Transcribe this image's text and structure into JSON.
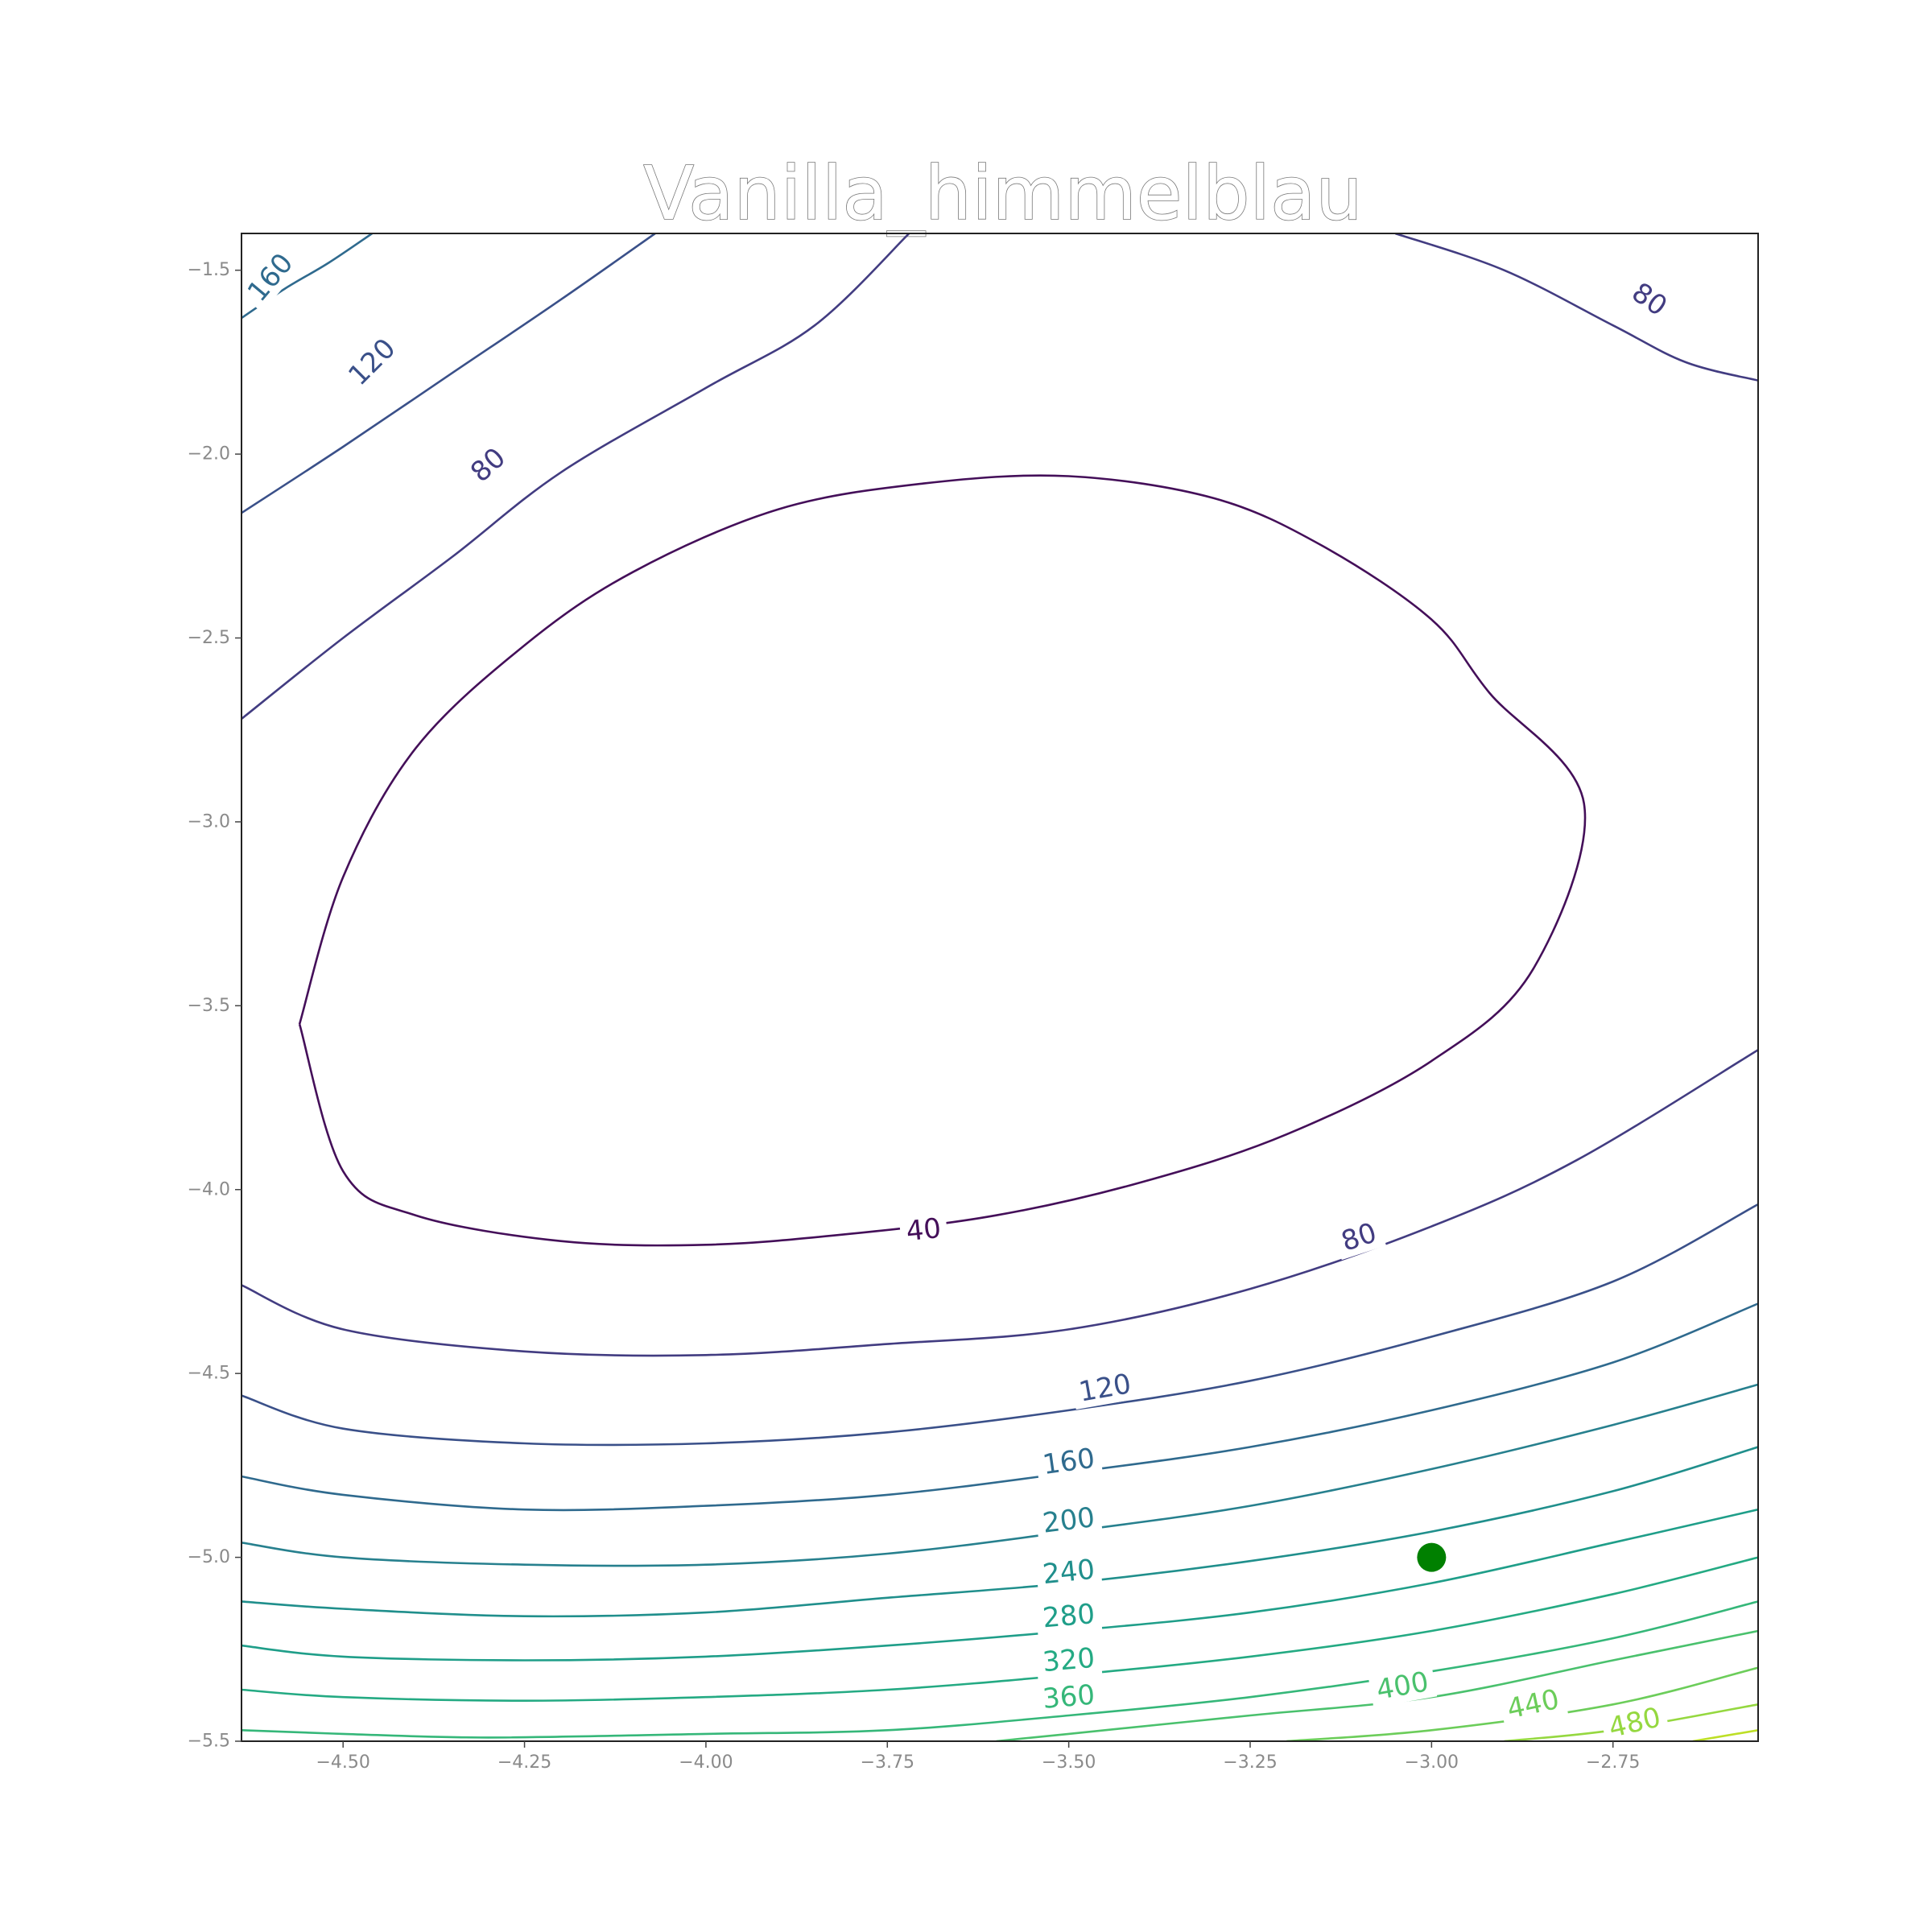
{
  "chart_data": {
    "type": "contour",
    "title": "Vanilla_himmelblau",
    "xlabel": "",
    "ylabel": "",
    "xlim": [
      -4.64,
      -2.55
    ],
    "ylim": [
      -5.5,
      -1.4
    ],
    "x_ticks": [
      -4.5,
      -4.25,
      -4.0,
      -3.75,
      -3.5,
      -3.25,
      -3.0,
      -2.75
    ],
    "x_tick_labels": [
      "−4.50",
      "−4.25",
      "−4.00",
      "−3.75",
      "−3.50",
      "−3.25",
      "−3.00",
      "−2.75"
    ],
    "y_ticks": [
      -1.5,
      -2.0,
      -2.5,
      -3.0,
      -3.5,
      -4.0,
      -4.5,
      -5.0,
      -5.5
    ],
    "y_tick_labels": [
      "−1.5",
      "−2.0",
      "−2.5",
      "−3.0",
      "−3.5",
      "−4.0",
      "−4.5",
      "−5.0",
      "−5.5"
    ],
    "grid": false,
    "colormap": "viridis",
    "contour_levels": [
      {
        "level": 40,
        "color": "#440f59",
        "labels": [
          "40"
        ],
        "paths": [
          [
            [
              -4.56,
              -3.55
            ],
            [
              -4.5,
              -3.15
            ],
            [
              -4.4,
              -2.8
            ],
            [
              -4.25,
              -2.52
            ],
            [
              -4.1,
              -2.32
            ],
            [
              -3.9,
              -2.15
            ],
            [
              -3.7,
              -2.08
            ],
            [
              -3.5,
              -2.06
            ],
            [
              -3.3,
              -2.12
            ],
            [
              -3.15,
              -2.25
            ],
            [
              -3.0,
              -2.45
            ],
            [
              -2.92,
              -2.65
            ],
            [
              -2.79,
              -2.95
            ],
            [
              -2.86,
              -3.4
            ],
            [
              -3.0,
              -3.65
            ],
            [
              -3.2,
              -3.85
            ],
            [
              -3.4,
              -3.98
            ],
            [
              -3.6,
              -4.07
            ],
            [
              -3.8,
              -4.12
            ],
            [
              -4.0,
              -4.15
            ],
            [
              -4.2,
              -4.14
            ],
            [
              -4.4,
              -4.07
            ],
            [
              -4.5,
              -3.95
            ],
            [
              -4.56,
              -3.55
            ]
          ]
        ]
      },
      {
        "level": 80,
        "color": "#423c81",
        "labels": [
          "80",
          "80",
          "80"
        ],
        "paths": [
          [
            [
              -4.64,
              -2.72
            ],
            [
              -4.5,
              -2.5
            ],
            [
              -4.35,
              -2.28
            ],
            [
              -4.2,
              -2.05
            ],
            [
              -4.0,
              -1.82
            ],
            [
              -3.85,
              -1.65
            ],
            [
              -3.72,
              -1.4
            ]
          ],
          [
            [
              -3.05,
              -1.4
            ],
            [
              -2.9,
              -1.5
            ],
            [
              -2.75,
              -1.65
            ],
            [
              -2.65,
              -1.75
            ],
            [
              -2.55,
              -1.8
            ]
          ],
          [
            [
              -4.64,
              -4.26
            ],
            [
              -4.5,
              -4.38
            ],
            [
              -4.25,
              -4.44
            ],
            [
              -4.0,
              -4.45
            ],
            [
              -3.75,
              -4.42
            ],
            [
              -3.5,
              -4.38
            ],
            [
              -3.25,
              -4.27
            ],
            [
              -3.0,
              -4.1
            ],
            [
              -2.8,
              -3.92
            ],
            [
              -2.55,
              -3.62
            ]
          ]
        ]
      },
      {
        "level": 120,
        "color": "#3a5089",
        "labels": [
          "120",
          "120"
        ],
        "paths": [
          [
            [
              -4.64,
              -2.16
            ],
            [
              -4.5,
              -1.98
            ],
            [
              -4.35,
              -1.78
            ],
            [
              -4.2,
              -1.58
            ],
            [
              -4.07,
              -1.4
            ]
          ],
          [
            [
              -4.64,
              -4.56
            ],
            [
              -4.5,
              -4.65
            ],
            [
              -4.25,
              -4.69
            ],
            [
              -4.0,
              -4.69
            ],
            [
              -3.75,
              -4.66
            ],
            [
              -3.5,
              -4.6
            ],
            [
              -3.25,
              -4.52
            ],
            [
              -3.0,
              -4.4
            ],
            [
              -2.75,
              -4.25
            ],
            [
              -2.55,
              -4.04
            ]
          ]
        ]
      },
      {
        "level": 160,
        "color": "#2f6a8e",
        "labels": [
          "160",
          "160"
        ],
        "paths": [
          [
            [
              -4.64,
              -1.63
            ],
            [
              -4.58,
              -1.55
            ],
            [
              -4.52,
              -1.48
            ],
            [
              -4.46,
              -1.4
            ]
          ],
          [
            [
              -4.64,
              -4.78
            ],
            [
              -4.5,
              -4.83
            ],
            [
              -4.25,
              -4.87
            ],
            [
              -4.0,
              -4.86
            ],
            [
              -3.75,
              -4.83
            ],
            [
              -3.5,
              -4.77
            ],
            [
              -3.25,
              -4.7
            ],
            [
              -3.0,
              -4.6
            ],
            [
              -2.75,
              -4.47
            ],
            [
              -2.55,
              -4.31
            ]
          ]
        ]
      },
      {
        "level": 200,
        "color": "#27808e",
        "labels": [
          "200"
        ],
        "paths": [
          [
            [
              -4.64,
              -4.96
            ],
            [
              -4.5,
              -5.0
            ],
            [
              -4.25,
              -5.02
            ],
            [
              -4.0,
              -5.02
            ],
            [
              -3.75,
              -4.99
            ],
            [
              -3.5,
              -4.93
            ],
            [
              -3.25,
              -4.86
            ],
            [
              -3.0,
              -4.76
            ],
            [
              -2.75,
              -4.64
            ],
            [
              -2.55,
              -4.53
            ]
          ]
        ]
      },
      {
        "level": 240,
        "color": "#208f8c",
        "labels": [
          "240"
        ],
        "paths": [
          [
            [
              -4.64,
              -5.12
            ],
            [
              -4.5,
              -5.14
            ],
            [
              -4.25,
              -5.16
            ],
            [
              -4.0,
              -5.15
            ],
            [
              -3.75,
              -5.11
            ],
            [
              -3.5,
              -5.07
            ],
            [
              -3.25,
              -5.01
            ],
            [
              -3.0,
              -4.93
            ],
            [
              -2.75,
              -4.82
            ],
            [
              -2.55,
              -4.7
            ]
          ]
        ]
      },
      {
        "level": 280,
        "color": "#1f9e89",
        "labels": [
          "280"
        ],
        "paths": [
          [
            [
              -4.64,
              -5.24
            ],
            [
              -4.5,
              -5.27
            ],
            [
              -4.25,
              -5.28
            ],
            [
              -4.0,
              -5.27
            ],
            [
              -3.75,
              -5.24
            ],
            [
              -3.5,
              -5.2
            ],
            [
              -3.25,
              -5.15
            ],
            [
              -3.0,
              -5.07
            ],
            [
              -2.75,
              -4.96
            ],
            [
              -2.55,
              -4.87
            ]
          ]
        ]
      },
      {
        "level": 320,
        "color": "#24aa83",
        "labels": [
          "320"
        ],
        "paths": [
          [
            [
              -4.64,
              -5.36
            ],
            [
              -4.5,
              -5.38
            ],
            [
              -4.25,
              -5.39
            ],
            [
              -4.0,
              -5.38
            ],
            [
              -3.75,
              -5.36
            ],
            [
              -3.5,
              -5.32
            ],
            [
              -3.25,
              -5.27
            ],
            [
              -3.0,
              -5.2
            ],
            [
              -2.75,
              -5.1
            ],
            [
              -2.55,
              -5.0
            ]
          ]
        ]
      },
      {
        "level": 360,
        "color": "#35b779",
        "labels": [
          "360"
        ],
        "paths": [
          [
            [
              -4.64,
              -5.47
            ],
            [
              -4.5,
              -5.48
            ],
            [
              -4.3,
              -5.49
            ],
            [
              -4.0,
              -5.48
            ],
            [
              -3.75,
              -5.47
            ],
            [
              -3.5,
              -5.43
            ],
            [
              -3.25,
              -5.38
            ],
            [
              -3.0,
              -5.31
            ],
            [
              -2.75,
              -5.22
            ],
            [
              -2.55,
              -5.12
            ]
          ]
        ]
      },
      {
        "level": 400,
        "color": "#4ac16d",
        "labels": [
          "400"
        ],
        "paths": [
          [
            [
              -3.6,
              -5.5
            ],
            [
              -3.5,
              -5.48
            ],
            [
              -3.25,
              -5.43
            ],
            [
              -3.0,
              -5.38
            ],
            [
              -2.75,
              -5.28
            ],
            [
              -2.55,
              -5.2
            ]
          ]
        ]
      },
      {
        "level": 440,
        "color": "#6ccd5a",
        "labels": [
          "440"
        ],
        "paths": [
          [
            [
              -3.2,
              -5.5
            ],
            [
              -3.0,
              -5.47
            ],
            [
              -2.75,
              -5.4
            ],
            [
              -2.55,
              -5.3
            ]
          ]
        ]
      },
      {
        "level": 480,
        "color": "#95d840",
        "labels": [
          "480"
        ],
        "paths": [
          [
            [
              -2.9,
              -5.5
            ],
            [
              -2.75,
              -5.47
            ],
            [
              -2.55,
              -5.4
            ]
          ]
        ]
      },
      {
        "level": 520,
        "color": "#bddf26",
        "labels": [],
        "paths": [
          [
            [
              -2.64,
              -5.5
            ],
            [
              -2.55,
              -5.47
            ]
          ]
        ]
      }
    ],
    "label_positions": [
      {
        "text": "40",
        "x": -3.7,
        "y": -4.11,
        "color": "#440f59",
        "angle": -6
      },
      {
        "text": "80",
        "x": -4.3,
        "y": -2.03,
        "color": "#423c81",
        "angle": -42
      },
      {
        "text": "80",
        "x": -2.7,
        "y": -1.58,
        "color": "#423c81",
        "angle": 35
      },
      {
        "text": "80",
        "x": -3.1,
        "y": -4.13,
        "color": "#423c81",
        "angle": -18
      },
      {
        "text": "120",
        "x": -4.46,
        "y": -1.75,
        "color": "#3a5089",
        "angle": -45
      },
      {
        "text": "120",
        "x": -3.45,
        "y": -4.54,
        "color": "#3a5089",
        "angle": -10
      },
      {
        "text": "160",
        "x": -4.6,
        "y": -1.52,
        "color": "#2f6a8e",
        "angle": -50
      },
      {
        "text": "160",
        "x": -3.5,
        "y": -4.74,
        "color": "#2f6a8e",
        "angle": -8
      },
      {
        "text": "200",
        "x": -3.5,
        "y": -4.9,
        "color": "#27808e",
        "angle": -7
      },
      {
        "text": "240",
        "x": -3.5,
        "y": -5.04,
        "color": "#208f8c",
        "angle": -6
      },
      {
        "text": "280",
        "x": -3.5,
        "y": -5.16,
        "color": "#1f9e89",
        "angle": -5
      },
      {
        "text": "320",
        "x": -3.5,
        "y": -5.28,
        "color": "#24aa83",
        "angle": -5
      },
      {
        "text": "360",
        "x": -3.5,
        "y": -5.38,
        "color": "#35b779",
        "angle": -5
      },
      {
        "text": "400",
        "x": -3.04,
        "y": -5.35,
        "color": "#4ac16d",
        "angle": -10
      },
      {
        "text": "440",
        "x": -2.86,
        "y": -5.4,
        "color": "#6ccd5a",
        "angle": -12
      },
      {
        "text": "480",
        "x": -2.72,
        "y": -5.45,
        "color": "#95d840",
        "angle": -13
      }
    ],
    "points": [
      {
        "x": -3.0,
        "y": -5.0,
        "color": "#008000"
      }
    ]
  }
}
